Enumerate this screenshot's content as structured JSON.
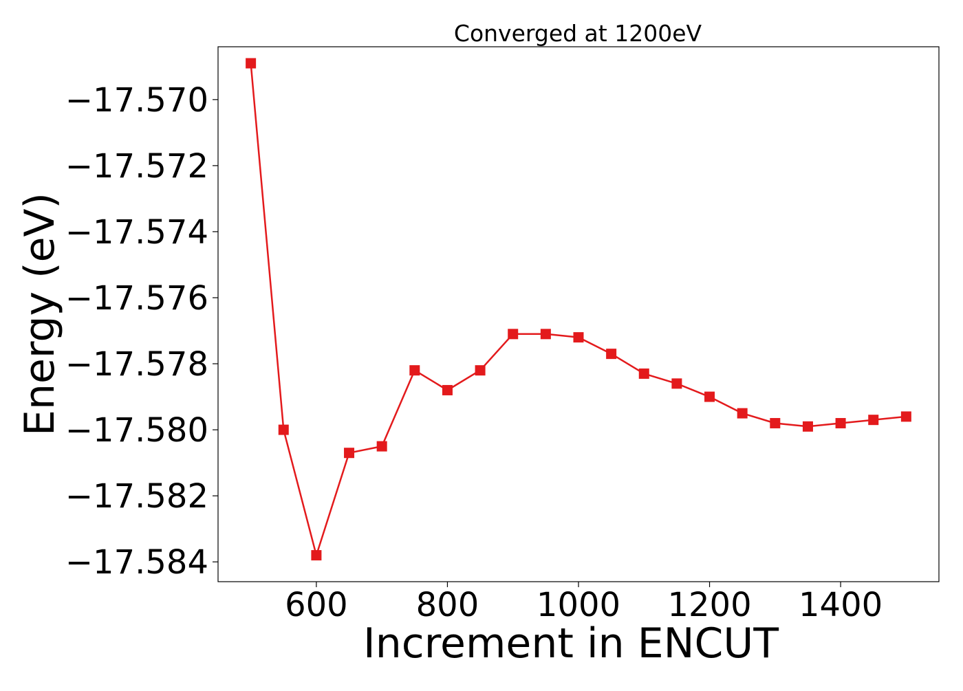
{
  "chart_data": {
    "type": "line",
    "title": "Converged at 1200eV",
    "xlabel": "Increment in ENCUT",
    "ylabel": "Energy (eV)",
    "xlim": [
      450,
      1550
    ],
    "ylim": [
      -17.5846,
      -17.5684
    ],
    "xticks": [
      600,
      800,
      1000,
      1200,
      1400
    ],
    "xtick_labels": [
      "600",
      "800",
      "1000",
      "1200",
      "1400"
    ],
    "yticks": [
      -17.57,
      -17.572,
      -17.574,
      -17.576,
      -17.578,
      -17.58,
      -17.582,
      -17.584
    ],
    "ytick_labels": [
      "−17.570",
      "−17.572",
      "−17.574",
      "−17.576",
      "−17.578",
      "−17.580",
      "−17.582",
      "−17.584"
    ],
    "grid": false,
    "series": [
      {
        "color": "#e31a1c",
        "marker": "square",
        "x": [
          500,
          550,
          600,
          650,
          700,
          750,
          800,
          850,
          900,
          950,
          1000,
          1050,
          1100,
          1150,
          1200,
          1250,
          1300,
          1350,
          1400,
          1450,
          1500
        ],
        "y": [
          -17.5689,
          -17.58,
          -17.5838,
          -17.5807,
          -17.5805,
          -17.5782,
          -17.5788,
          -17.5782,
          -17.5771,
          -17.5771,
          -17.5772,
          -17.5777,
          -17.5783,
          -17.5786,
          -17.579,
          -17.5795,
          -17.5798,
          -17.5799,
          -17.5798,
          -17.5797,
          -17.5796
        ]
      }
    ]
  }
}
